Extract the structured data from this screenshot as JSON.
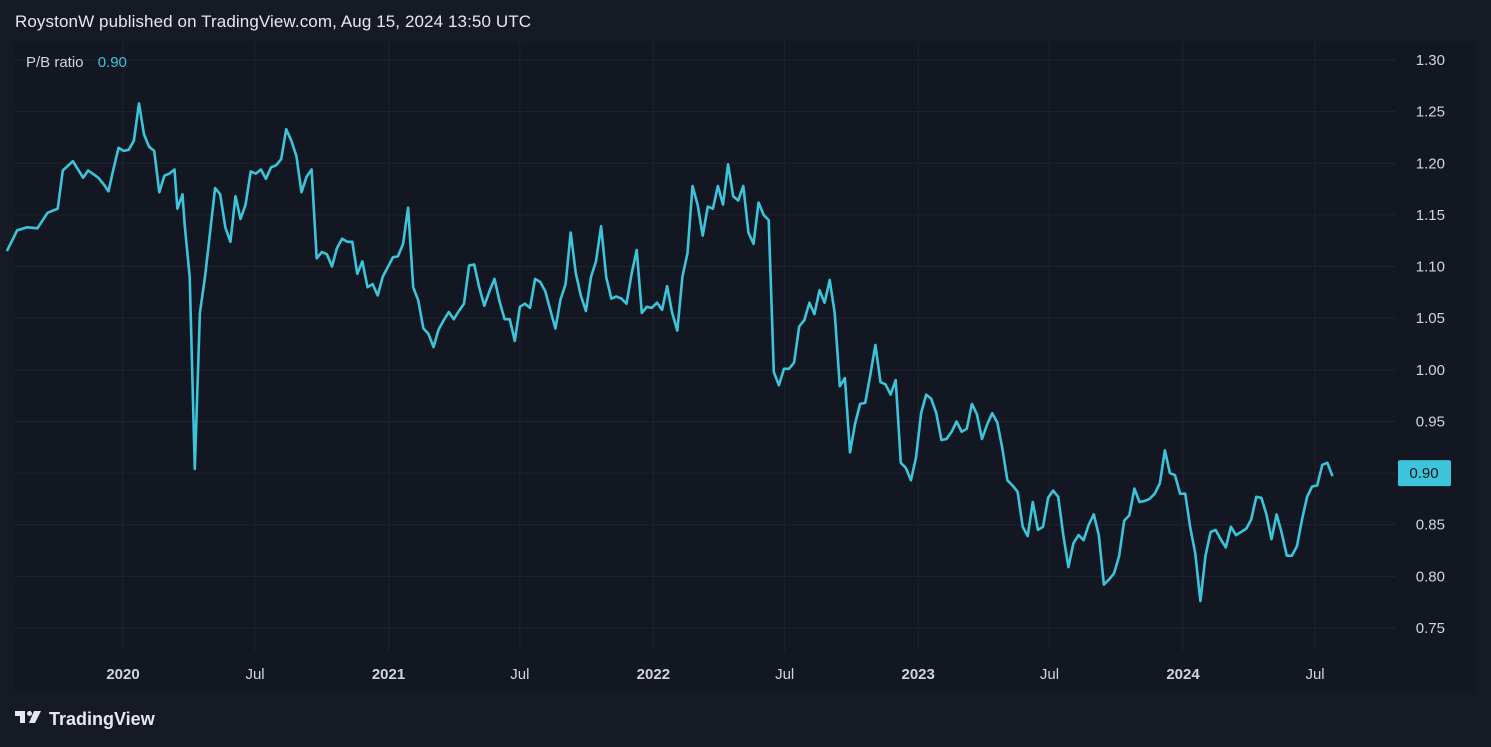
{
  "header": {
    "published_text": "RoystonW published on TradingView.com, Aug 15, 2024 13:50 UTC"
  },
  "legend": {
    "series_name": "P/B ratio",
    "last_value": "0.90"
  },
  "footer": {
    "brand": "TradingView"
  },
  "colors": {
    "line": "#3cc4da",
    "background": "#131722",
    "grid": "#1f2330",
    "badge": "#3cc4da"
  },
  "icons": {
    "logo": "tradingview-logo-icon"
  },
  "chart_data": {
    "type": "line",
    "title": "",
    "xlabel": "",
    "ylabel": "",
    "ylim": [
      0.725,
      1.315
    ],
    "grid": true,
    "legend_position": "top-left",
    "last_value_label": "0.90",
    "y_ticks": [
      "1.30",
      "1.25",
      "1.20",
      "1.15",
      "1.10",
      "1.05",
      "1.00",
      "0.95",
      "0.90",
      "0.85",
      "0.80",
      "0.75"
    ],
    "x_ticks": [
      {
        "label": "2020",
        "date": "2020-01-01",
        "bold": true
      },
      {
        "label": "Jul",
        "date": "2020-07-01",
        "bold": false
      },
      {
        "label": "2021",
        "date": "2021-01-01",
        "bold": true
      },
      {
        "label": "Jul",
        "date": "2021-07-01",
        "bold": false
      },
      {
        "label": "2022",
        "date": "2022-01-01",
        "bold": true
      },
      {
        "label": "Jul",
        "date": "2022-07-01",
        "bold": false
      },
      {
        "label": "2023",
        "date": "2023-01-01",
        "bold": true
      },
      {
        "label": "Jul",
        "date": "2023-07-01",
        "bold": false
      },
      {
        "label": "2024",
        "date": "2024-01-01",
        "bold": true
      },
      {
        "label": "Jul",
        "date": "2024-07-01",
        "bold": false
      }
    ],
    "series": [
      {
        "name": "P/B ratio",
        "points": [
          [
            "2019-07-25",
            1.115
          ],
          [
            "2019-08-08",
            1.135
          ],
          [
            "2019-08-22",
            1.138
          ],
          [
            "2019-09-05",
            1.137
          ],
          [
            "2019-09-19",
            1.152
          ],
          [
            "2019-10-03",
            1.156
          ],
          [
            "2019-10-10",
            1.193
          ],
          [
            "2019-10-24",
            1.202
          ],
          [
            "2019-11-07",
            1.186
          ],
          [
            "2019-11-14",
            1.193
          ],
          [
            "2019-11-28",
            1.186
          ],
          [
            "2019-12-05",
            1.18
          ],
          [
            "2019-12-12",
            1.173
          ],
          [
            "2019-12-19",
            1.195
          ],
          [
            "2019-12-26",
            1.215
          ],
          [
            "2020-01-02",
            1.212
          ],
          [
            "2020-01-09",
            1.213
          ],
          [
            "2020-01-16",
            1.222
          ],
          [
            "2020-01-23",
            1.258
          ],
          [
            "2020-01-30",
            1.228
          ],
          [
            "2020-02-06",
            1.216
          ],
          [
            "2020-02-13",
            1.212
          ],
          [
            "2020-02-20",
            1.172
          ],
          [
            "2020-02-27",
            1.188
          ],
          [
            "2020-03-05",
            1.19
          ],
          [
            "2020-03-12",
            1.194
          ],
          [
            "2020-03-16",
            1.156
          ],
          [
            "2020-03-23",
            1.17
          ],
          [
            "2020-03-26",
            1.14
          ],
          [
            "2020-04-02",
            1.09
          ],
          [
            "2020-04-09",
            0.904
          ],
          [
            "2020-04-16",
            1.055
          ],
          [
            "2020-04-23",
            1.09
          ],
          [
            "2020-05-07",
            1.176
          ],
          [
            "2020-05-14",
            1.17
          ],
          [
            "2020-05-21",
            1.138
          ],
          [
            "2020-05-28",
            1.124
          ],
          [
            "2020-06-04",
            1.168
          ],
          [
            "2020-06-11",
            1.146
          ],
          [
            "2020-06-18",
            1.16
          ],
          [
            "2020-06-25",
            1.192
          ],
          [
            "2020-07-02",
            1.19
          ],
          [
            "2020-07-09",
            1.194
          ],
          [
            "2020-07-16",
            1.185
          ],
          [
            "2020-07-23",
            1.196
          ],
          [
            "2020-07-30",
            1.198
          ],
          [
            "2020-08-06",
            1.204
          ],
          [
            "2020-08-13",
            1.233
          ],
          [
            "2020-08-20",
            1.222
          ],
          [
            "2020-08-27",
            1.207
          ],
          [
            "2020-09-03",
            1.172
          ],
          [
            "2020-09-10",
            1.187
          ],
          [
            "2020-09-17",
            1.194
          ],
          [
            "2020-09-24",
            1.108
          ],
          [
            "2020-10-01",
            1.114
          ],
          [
            "2020-10-08",
            1.112
          ],
          [
            "2020-10-15",
            1.1
          ],
          [
            "2020-10-22",
            1.118
          ],
          [
            "2020-10-29",
            1.127
          ],
          [
            "2020-11-05",
            1.124
          ],
          [
            "2020-11-12",
            1.124
          ],
          [
            "2020-11-19",
            1.093
          ],
          [
            "2020-11-26",
            1.105
          ],
          [
            "2020-12-03",
            1.08
          ],
          [
            "2020-12-10",
            1.083
          ],
          [
            "2020-12-17",
            1.072
          ],
          [
            "2020-12-24",
            1.09
          ],
          [
            "2021-01-07",
            1.109
          ],
          [
            "2021-01-14",
            1.11
          ],
          [
            "2021-01-21",
            1.122
          ],
          [
            "2021-01-28",
            1.157
          ],
          [
            "2021-02-04",
            1.08
          ],
          [
            "2021-02-11",
            1.067
          ],
          [
            "2021-02-18",
            1.04
          ],
          [
            "2021-02-25",
            1.035
          ],
          [
            "2021-03-04",
            1.022
          ],
          [
            "2021-03-11",
            1.039
          ],
          [
            "2021-03-18",
            1.048
          ],
          [
            "2021-03-25",
            1.056
          ],
          [
            "2021-04-01",
            1.049
          ],
          [
            "2021-04-08",
            1.057
          ],
          [
            "2021-04-15",
            1.064
          ],
          [
            "2021-04-22",
            1.101
          ],
          [
            "2021-04-29",
            1.102
          ],
          [
            "2021-05-06",
            1.08
          ],
          [
            "2021-05-13",
            1.062
          ],
          [
            "2021-05-20",
            1.076
          ],
          [
            "2021-05-27",
            1.088
          ],
          [
            "2021-06-03",
            1.066
          ],
          [
            "2021-06-10",
            1.049
          ],
          [
            "2021-06-17",
            1.049
          ],
          [
            "2021-06-24",
            1.028
          ],
          [
            "2021-07-01",
            1.061
          ],
          [
            "2021-07-08",
            1.064
          ],
          [
            "2021-07-15",
            1.06
          ],
          [
            "2021-07-22",
            1.088
          ],
          [
            "2021-07-29",
            1.085
          ],
          [
            "2021-08-05",
            1.076
          ],
          [
            "2021-08-12",
            1.058
          ],
          [
            "2021-08-19",
            1.04
          ],
          [
            "2021-08-26",
            1.068
          ],
          [
            "2021-09-02",
            1.083
          ],
          [
            "2021-09-09",
            1.133
          ],
          [
            "2021-09-16",
            1.094
          ],
          [
            "2021-09-23",
            1.072
          ],
          [
            "2021-09-30",
            1.057
          ],
          [
            "2021-10-07",
            1.09
          ],
          [
            "2021-10-14",
            1.105
          ],
          [
            "2021-10-21",
            1.139
          ],
          [
            "2021-10-28",
            1.09
          ],
          [
            "2021-11-04",
            1.069
          ],
          [
            "2021-11-11",
            1.071
          ],
          [
            "2021-11-18",
            1.069
          ],
          [
            "2021-11-25",
            1.064
          ],
          [
            "2021-12-02",
            1.093
          ],
          [
            "2021-12-09",
            1.116
          ],
          [
            "2021-12-16",
            1.055
          ],
          [
            "2021-12-23",
            1.061
          ],
          [
            "2021-12-30",
            1.06
          ],
          [
            "2022-01-06",
            1.065
          ],
          [
            "2022-01-13",
            1.058
          ],
          [
            "2022-01-20",
            1.081
          ],
          [
            "2022-01-27",
            1.055
          ],
          [
            "2022-02-03",
            1.038
          ],
          [
            "2022-02-10",
            1.09
          ],
          [
            "2022-02-17",
            1.113
          ],
          [
            "2022-02-24",
            1.178
          ],
          [
            "2022-03-03",
            1.16
          ],
          [
            "2022-03-10",
            1.13
          ],
          [
            "2022-03-17",
            1.158
          ],
          [
            "2022-03-24",
            1.156
          ],
          [
            "2022-03-31",
            1.178
          ],
          [
            "2022-04-07",
            1.16
          ],
          [
            "2022-04-14",
            1.199
          ],
          [
            "2022-04-21",
            1.168
          ],
          [
            "2022-04-28",
            1.164
          ],
          [
            "2022-05-05",
            1.178
          ],
          [
            "2022-05-12",
            1.133
          ],
          [
            "2022-05-19",
            1.122
          ],
          [
            "2022-05-26",
            1.162
          ],
          [
            "2022-06-02",
            1.15
          ],
          [
            "2022-06-09",
            1.145
          ],
          [
            "2022-06-16",
            0.998
          ],
          [
            "2022-06-23",
            0.985
          ],
          [
            "2022-06-30",
            1.001
          ],
          [
            "2022-07-07",
            1.001
          ],
          [
            "2022-07-14",
            1.007
          ],
          [
            "2022-07-21",
            1.042
          ],
          [
            "2022-07-28",
            1.048
          ],
          [
            "2022-08-04",
            1.065
          ],
          [
            "2022-08-11",
            1.054
          ],
          [
            "2022-08-18",
            1.077
          ],
          [
            "2022-08-25",
            1.065
          ],
          [
            "2022-09-01",
            1.087
          ],
          [
            "2022-09-08",
            1.055
          ],
          [
            "2022-09-15",
            0.984
          ],
          [
            "2022-09-22",
            0.992
          ],
          [
            "2022-09-29",
            0.92
          ],
          [
            "2022-10-06",
            0.948
          ],
          [
            "2022-10-13",
            0.967
          ],
          [
            "2022-10-20",
            0.968
          ],
          [
            "2022-10-27",
            0.995
          ],
          [
            "2022-11-03",
            1.024
          ],
          [
            "2022-11-10",
            0.988
          ],
          [
            "2022-11-17",
            0.986
          ],
          [
            "2022-11-24",
            0.976
          ],
          [
            "2022-12-01",
            0.99
          ],
          [
            "2022-12-08",
            0.91
          ],
          [
            "2022-12-15",
            0.905
          ],
          [
            "2022-12-22",
            0.893
          ],
          [
            "2022-12-29",
            0.915
          ],
          [
            "2023-01-05",
            0.958
          ],
          [
            "2023-01-12",
            0.976
          ],
          [
            "2023-01-19",
            0.972
          ],
          [
            "2023-01-26",
            0.958
          ],
          [
            "2023-02-02",
            0.932
          ],
          [
            "2023-02-09",
            0.933
          ],
          [
            "2023-02-16",
            0.94
          ],
          [
            "2023-02-23",
            0.95
          ],
          [
            "2023-03-02",
            0.94
          ],
          [
            "2023-03-09",
            0.943
          ],
          [
            "2023-03-16",
            0.967
          ],
          [
            "2023-03-23",
            0.957
          ],
          [
            "2023-03-30",
            0.933
          ],
          [
            "2023-04-06",
            0.947
          ],
          [
            "2023-04-13",
            0.958
          ],
          [
            "2023-04-20",
            0.949
          ],
          [
            "2023-04-27",
            0.924
          ],
          [
            "2023-05-04",
            0.893
          ],
          [
            "2023-05-11",
            0.888
          ],
          [
            "2023-05-18",
            0.882
          ],
          [
            "2023-05-25",
            0.848
          ],
          [
            "2023-06-01",
            0.839
          ],
          [
            "2023-06-08",
            0.872
          ],
          [
            "2023-06-15",
            0.845
          ],
          [
            "2023-06-22",
            0.848
          ],
          [
            "2023-06-29",
            0.876
          ],
          [
            "2023-07-06",
            0.883
          ],
          [
            "2023-07-13",
            0.877
          ],
          [
            "2023-07-20",
            0.84
          ],
          [
            "2023-07-27",
            0.809
          ],
          [
            "2023-08-03",
            0.832
          ],
          [
            "2023-08-10",
            0.84
          ],
          [
            "2023-08-17",
            0.835
          ],
          [
            "2023-08-24",
            0.85
          ],
          [
            "2023-08-31",
            0.86
          ],
          [
            "2023-09-07",
            0.84
          ],
          [
            "2023-09-14",
            0.792
          ],
          [
            "2023-09-21",
            0.797
          ],
          [
            "2023-09-28",
            0.803
          ],
          [
            "2023-10-05",
            0.82
          ],
          [
            "2023-10-12",
            0.854
          ],
          [
            "2023-10-19",
            0.859
          ],
          [
            "2023-10-26",
            0.885
          ],
          [
            "2023-11-02",
            0.872
          ],
          [
            "2023-11-09",
            0.873
          ],
          [
            "2023-11-16",
            0.875
          ],
          [
            "2023-11-23",
            0.88
          ],
          [
            "2023-11-30",
            0.89
          ],
          [
            "2023-12-07",
            0.922
          ],
          [
            "2023-12-14",
            0.9
          ],
          [
            "2023-12-21",
            0.898
          ],
          [
            "2023-12-28",
            0.88
          ],
          [
            "2024-01-04",
            0.88
          ],
          [
            "2024-01-11",
            0.847
          ],
          [
            "2024-01-18",
            0.822
          ],
          [
            "2024-01-25",
            0.776
          ],
          [
            "2024-02-01",
            0.82
          ],
          [
            "2024-02-08",
            0.843
          ],
          [
            "2024-02-15",
            0.845
          ],
          [
            "2024-02-22",
            0.836
          ],
          [
            "2024-02-29",
            0.828
          ],
          [
            "2024-03-07",
            0.848
          ],
          [
            "2024-03-14",
            0.84
          ],
          [
            "2024-03-21",
            0.843
          ],
          [
            "2024-03-28",
            0.846
          ],
          [
            "2024-04-04",
            0.855
          ],
          [
            "2024-04-11",
            0.877
          ],
          [
            "2024-04-18",
            0.876
          ],
          [
            "2024-04-25",
            0.86
          ],
          [
            "2024-05-02",
            0.836
          ],
          [
            "2024-05-09",
            0.86
          ],
          [
            "2024-05-16",
            0.842
          ],
          [
            "2024-05-23",
            0.82
          ],
          [
            "2024-05-30",
            0.82
          ],
          [
            "2024-06-06",
            0.829
          ],
          [
            "2024-06-13",
            0.855
          ],
          [
            "2024-06-20",
            0.877
          ],
          [
            "2024-06-27",
            0.887
          ],
          [
            "2024-07-04",
            0.888
          ],
          [
            "2024-07-11",
            0.908
          ],
          [
            "2024-07-18",
            0.91
          ],
          [
            "2024-07-25",
            0.897
          ]
        ]
      }
    ]
  }
}
